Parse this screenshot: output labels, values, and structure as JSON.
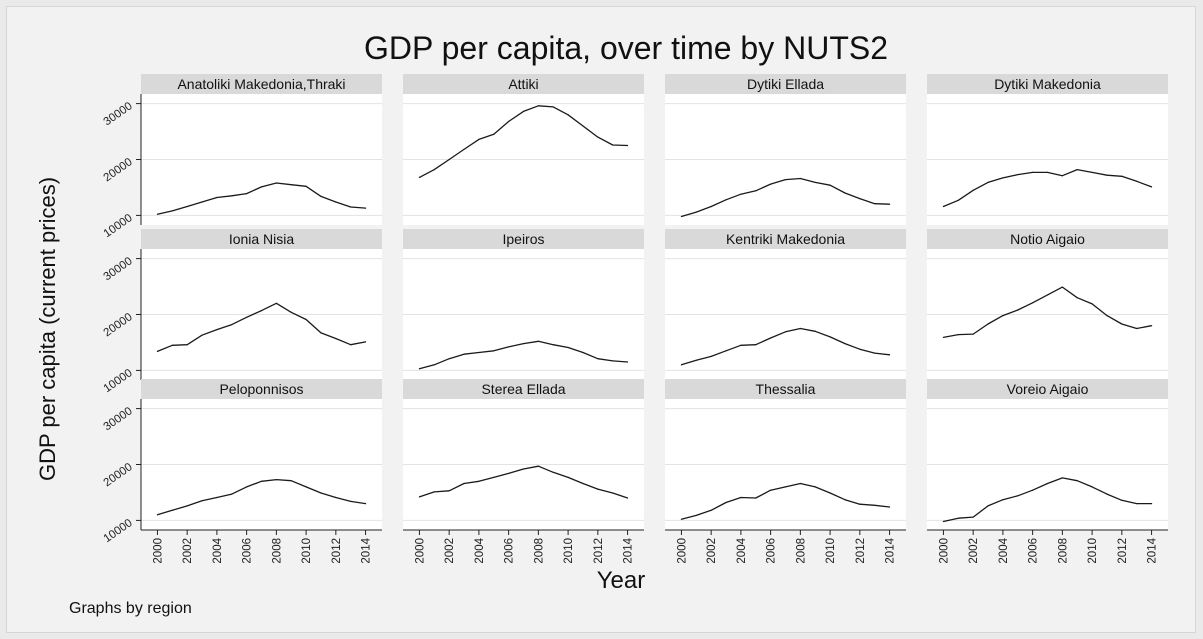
{
  "chart_data": {
    "type": "line",
    "title": "GDP per capita, over time by NUTS2",
    "xlabel": "Year",
    "ylabel": "GDP per capita (current prices)",
    "note": "Graphs by region",
    "x": [
      2000,
      2001,
      2002,
      2003,
      2004,
      2005,
      2006,
      2007,
      2008,
      2009,
      2010,
      2011,
      2012,
      2013,
      2014
    ],
    "xticks": [
      2000,
      2002,
      2004,
      2006,
      2008,
      2010,
      2012,
      2014
    ],
    "yticks": [
      10000,
      20000,
      30000
    ],
    "ylim": [
      9000,
      31000
    ],
    "xlim": [
      1999.5,
      2014.5
    ],
    "grid": true,
    "line_color": "#1a1a1a",
    "strip_color": "#d9d9d9",
    "panels": [
      {
        "name": "Anatoliki Makedonia,Thraki",
        "values": [
          10200,
          10800,
          11600,
          12400,
          13200,
          13500,
          13900,
          15100,
          15800,
          15500,
          15200,
          13400,
          12400,
          11500,
          11300
        ]
      },
      {
        "name": "Attiki",
        "values": [
          16800,
          18200,
          20000,
          21800,
          23600,
          24500,
          26800,
          28600,
          29600,
          29400,
          28000,
          26000,
          24000,
          22600,
          22500
        ]
      },
      {
        "name": "Dytiki Ellada",
        "values": [
          9800,
          10600,
          11600,
          12800,
          13800,
          14400,
          15600,
          16400,
          16600,
          15900,
          15400,
          14000,
          13000,
          12100,
          12000
        ]
      },
      {
        "name": "Dytiki Makedonia",
        "values": [
          11600,
          12700,
          14500,
          15900,
          16700,
          17300,
          17700,
          17700,
          17100,
          18200,
          17700,
          17200,
          17000,
          16100,
          15100
        ]
      },
      {
        "name": "Ionia Nisia",
        "values": [
          13400,
          14500,
          14600,
          16300,
          17300,
          18200,
          19500,
          20700,
          22000,
          20400,
          19100,
          16700,
          15700,
          14600,
          15100
        ]
      },
      {
        "name": "Ipeiros",
        "values": [
          10300,
          11000,
          12100,
          12900,
          13200,
          13500,
          14200,
          14800,
          15200,
          14600,
          14100,
          13200,
          12100,
          11700,
          11500
        ]
      },
      {
        "name": "Kentriki Makedonia",
        "values": [
          11000,
          11800,
          12500,
          13500,
          14500,
          14600,
          15800,
          16900,
          17500,
          17000,
          16000,
          14800,
          13800,
          13100,
          12800
        ]
      },
      {
        "name": "Notio Aigaio",
        "values": [
          15900,
          16400,
          16500,
          18300,
          19800,
          20800,
          22100,
          23500,
          24900,
          23000,
          21900,
          19800,
          18300,
          17500,
          18000
        ]
      },
      {
        "name": "Peloponnisos",
        "values": [
          11000,
          11800,
          12600,
          13500,
          14100,
          14700,
          16000,
          17000,
          17300,
          17100,
          16000,
          14900,
          14100,
          13400,
          13000
        ]
      },
      {
        "name": "Sterea Ellada",
        "values": [
          14200,
          15100,
          15300,
          16600,
          17000,
          17700,
          18400,
          19200,
          19700,
          18600,
          17700,
          16600,
          15600,
          14900,
          14000
        ]
      },
      {
        "name": "Thessalia",
        "values": [
          10200,
          10900,
          11800,
          13200,
          14100,
          14000,
          15400,
          16000,
          16600,
          16000,
          14900,
          13700,
          12900,
          12700,
          12400
        ]
      },
      {
        "name": "Voreio Aigaio",
        "values": [
          9800,
          10400,
          10600,
          12600,
          13700,
          14400,
          15400,
          16600,
          17600,
          17100,
          16000,
          14700,
          13600,
          13000,
          13000
        ]
      }
    ]
  }
}
